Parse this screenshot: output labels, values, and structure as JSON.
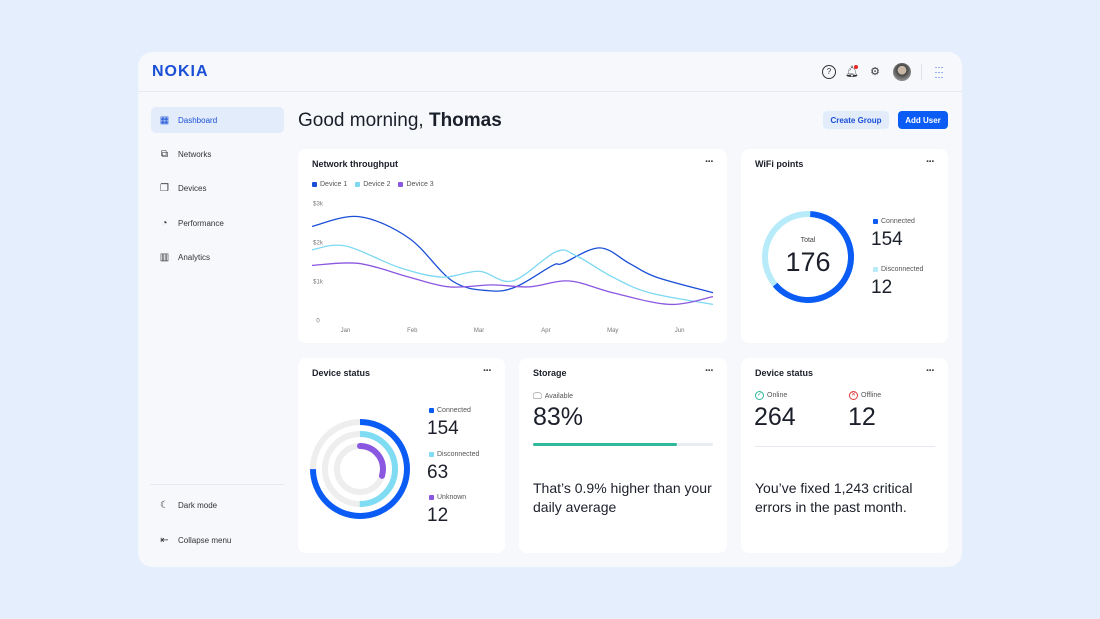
{
  "header": {
    "logo": "NOKIA",
    "icons": [
      "help-icon",
      "bell-icon",
      "gear-icon",
      "avatar",
      "apps-grid-icon"
    ]
  },
  "sidebar": {
    "items": [
      {
        "label": "Dashboard",
        "icon": "dashboard-icon"
      },
      {
        "label": "Networks",
        "icon": "network-icon"
      },
      {
        "label": "Devices",
        "icon": "devices-icon"
      },
      {
        "label": "Performance",
        "icon": "gauge-icon"
      },
      {
        "label": "Analytics",
        "icon": "bar-chart-icon"
      }
    ],
    "dark_mode": "Dark mode",
    "collapse": "Collapse menu"
  },
  "main": {
    "greeting": "Good morning,",
    "name": "Thomas",
    "create_group": "Create Group",
    "add_user": "Add User"
  },
  "colors": {
    "accent": "#0a5cf5",
    "device1": "#1a4fd6",
    "device2": "#7dd8f2",
    "device3": "#8a57e0",
    "teal": "#2fb89a"
  },
  "throughput": {
    "title": "Network throughput",
    "more": "···"
  },
  "wifi": {
    "title": "WiFi points",
    "more": "···",
    "total_label": "Total",
    "total": "176",
    "connected_label": "Connected",
    "connected": "154",
    "disconnected_label": "Disconnected",
    "disconnected": "12"
  },
  "device_status": {
    "title": "Device status",
    "more": "···",
    "connected_label": "Connected",
    "connected": "154",
    "disconnected_label": "Disconnected",
    "disconnected": "63",
    "unknown_label": "Unknown",
    "unknown": "12"
  },
  "storage": {
    "title": "Storage",
    "more": "···",
    "available_label": "Available",
    "available": "83%",
    "progress": 0.8,
    "note": "That’s 0.9% higher than your daily average"
  },
  "device_status2": {
    "title": "Device status",
    "more": "···",
    "online_label": "Online",
    "online": "264",
    "offline_label": "Offline",
    "offline": "12",
    "note": "You’ve fixed 1,243 critical errors in the past month."
  },
  "chart_data": {
    "type": "line",
    "title": "Network throughput",
    "xlabel": "",
    "ylabel": "",
    "categories": [
      "Jan",
      "Feb",
      "Mar",
      "Apr",
      "May",
      "Jun"
    ],
    "yticks": [
      "0",
      "$1k",
      "$2k",
      "$3k"
    ],
    "ylim": [
      0,
      3
    ],
    "xlim": [
      -0.5,
      5.5
    ],
    "legend": "top-left",
    "series": [
      {
        "name": "Device 1",
        "color": "#1a4fd6",
        "x": [
          -0.5,
          0.2,
          0.95,
          1.6,
          2.15,
          2.55,
          3.1,
          3.25,
          3.8,
          4.25,
          4.65,
          5.5
        ],
        "y": [
          2.4,
          2.65,
          2.1,
          1.0,
          0.75,
          0.85,
          1.4,
          1.45,
          1.85,
          1.45,
          1.1,
          0.7
        ]
      },
      {
        "name": "Device 2",
        "color": "#7dd8f2",
        "x": [
          -0.5,
          0,
          0.8,
          1.45,
          2,
          2.5,
          3.15,
          3.45,
          4,
          4.55,
          5.5
        ],
        "y": [
          1.8,
          1.9,
          1.35,
          1.1,
          1.25,
          1.0,
          1.75,
          1.65,
          1.1,
          0.7,
          0.4
        ]
      },
      {
        "name": "Device 3",
        "color": "#8a57e0",
        "x": [
          -0.5,
          0.2,
          0.95,
          1.55,
          2.2,
          2.75,
          3.35,
          4,
          4.85,
          5.5
        ],
        "y": [
          1.4,
          1.45,
          1.1,
          0.85,
          0.9,
          0.85,
          1.0,
          0.7,
          0.4,
          0.6
        ]
      }
    ]
  }
}
